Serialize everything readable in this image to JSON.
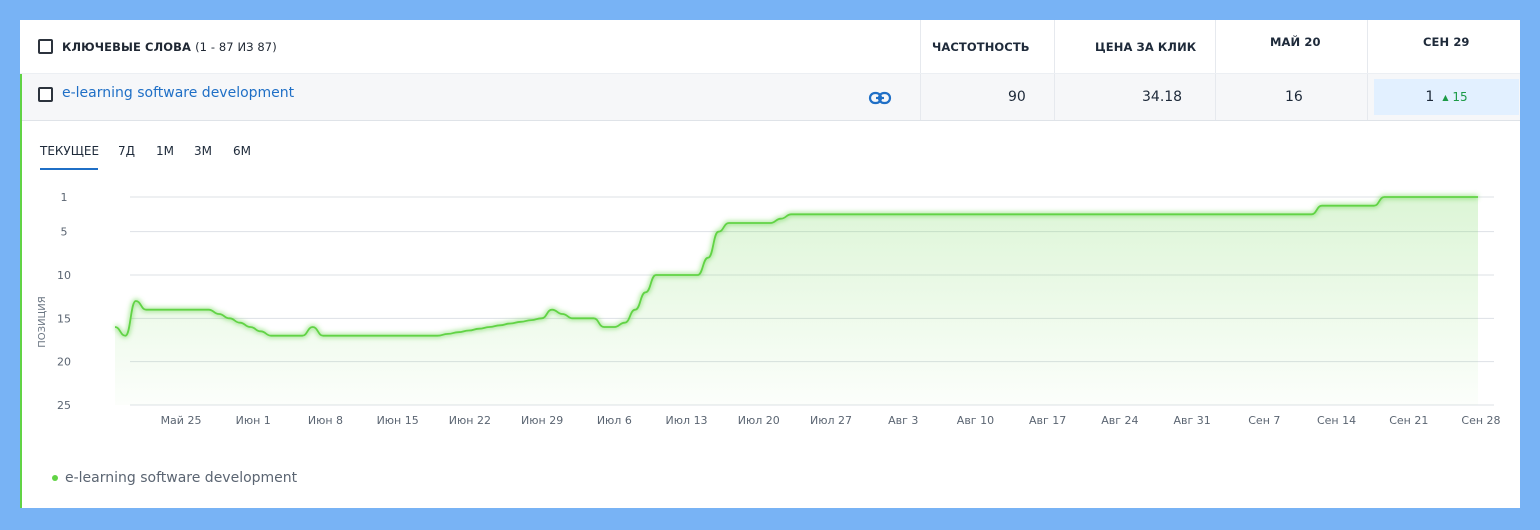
{
  "header": {
    "keywords_label": "КЛЮЧЕВЫЕ СЛОВА",
    "keywords_count": "(1 - 87 ИЗ 87)",
    "col_frequency": "ЧАСТОТНОСТЬ",
    "col_cpc": "ЦЕНА ЗА КЛИК",
    "col_date1": "МАЙ 20",
    "col_date2": "СЕН 29"
  },
  "row": {
    "keyword": "e-learning software development",
    "frequency": "90",
    "cpc": "34.18",
    "pos_date1": "16",
    "pos_date2": "1",
    "delta": "15",
    "delta_icon": "triangle-up-icon",
    "link_icon": "link-icon"
  },
  "tabs": [
    {
      "label": "ТЕКУЩЕЕ",
      "active": true
    },
    {
      "label": "7Д"
    },
    {
      "label": "1М"
    },
    {
      "label": "3М"
    },
    {
      "label": "6М"
    }
  ],
  "colors": {
    "line": "#61d345",
    "accent_blue": "#1f6fc6",
    "badge_bg": "#e2f0ff",
    "delta_green": "#1b9a46"
  },
  "chart_data": {
    "type": "area",
    "ylabel": "ПОЗИЦИЯ",
    "y_reversed": true,
    "ylim": [
      1,
      25
    ],
    "y_ticks": [
      1,
      5,
      10,
      15,
      20,
      25
    ],
    "x_tick_labels": [
      "Май 25",
      "Июн 1",
      "Июн 8",
      "Июн 15",
      "Июн 22",
      "Июн 29",
      "Июл 6",
      "Июл 13",
      "Июл 20",
      "Июл 27",
      "Авг 3",
      "Авг 10",
      "Авг 17",
      "Авг 24",
      "Авг 31",
      "Сен 7",
      "Сен 14",
      "Сен 21",
      "Сен 28"
    ],
    "grid": true,
    "legend_position": "bottom-left",
    "series": [
      {
        "name": "e-learning software development",
        "x": [
          "May 20",
          "May 21",
          "May 22",
          "May 23",
          "May 24",
          "May 25",
          "May 26",
          "May 27",
          "May 28",
          "May 29",
          "May 30",
          "May 31",
          "Jun 1",
          "Jun 2",
          "Jun 3",
          "Jun 4",
          "Jun 5",
          "Jun 6",
          "Jun 7",
          "Jun 8",
          "Jun 9",
          "Jun 10",
          "Jun 11",
          "Jun 12",
          "Jun 13",
          "Jun 14",
          "Jun 15",
          "Jun 16",
          "Jun 17",
          "Jun 18",
          "Jun 19",
          "Jun 20",
          "Jun 21",
          "Jun 22",
          "Jun 23",
          "Jun 24",
          "Jun 25",
          "Jun 26",
          "Jun 27",
          "Jun 28",
          "Jun 29",
          "Jun 30",
          "Jul 1",
          "Jul 2",
          "Jul 3",
          "Jul 4",
          "Jul 5",
          "Jul 6",
          "Jul 7",
          "Jul 8",
          "Jul 9",
          "Jul 10",
          "Jul 11",
          "Jul 12",
          "Jul 13",
          "Jul 14",
          "Jul 15",
          "Jul 16",
          "Jul 17",
          "Jul 18",
          "Jul 19",
          "Jul 20",
          "Jul 21",
          "Jul 22",
          "Jul 23",
          "Jul 24",
          "Jul 25",
          "Jul 26",
          "Jul 27",
          "Aug 3",
          "Aug 10",
          "Aug 17",
          "Aug 24",
          "Aug 31",
          "Sep 7",
          "Sep 9",
          "Sep 10",
          "Sep 11",
          "Sep 12",
          "Sep 13",
          "Sep 14",
          "Sep 15",
          "Sep 16",
          "Sep 17",
          "Sep 18",
          "Sep 19",
          "Sep 20",
          "Sep 21",
          "Sep 28"
        ],
        "values": [
          16,
          17,
          13,
          14,
          14,
          14,
          14,
          14,
          14,
          14,
          14.5,
          15,
          15.5,
          16,
          16.5,
          17,
          17,
          17,
          17,
          16,
          17,
          17,
          17,
          17,
          17,
          17,
          17,
          17,
          17,
          17,
          17,
          17,
          16.8,
          16.6,
          16.4,
          16.2,
          16,
          15.8,
          15.6,
          15.4,
          15.2,
          15,
          14,
          14.5,
          15,
          15,
          15,
          16,
          16,
          15.5,
          14,
          12,
          10,
          10,
          10,
          10,
          10,
          8,
          5,
          4,
          4,
          4,
          4,
          4,
          3.5,
          3,
          3,
          3,
          3,
          3,
          3,
          3,
          3,
          3,
          3,
          3,
          3,
          3,
          3,
          2,
          2,
          2,
          2,
          2,
          2,
          1,
          1,
          1,
          1
        ]
      }
    ]
  }
}
